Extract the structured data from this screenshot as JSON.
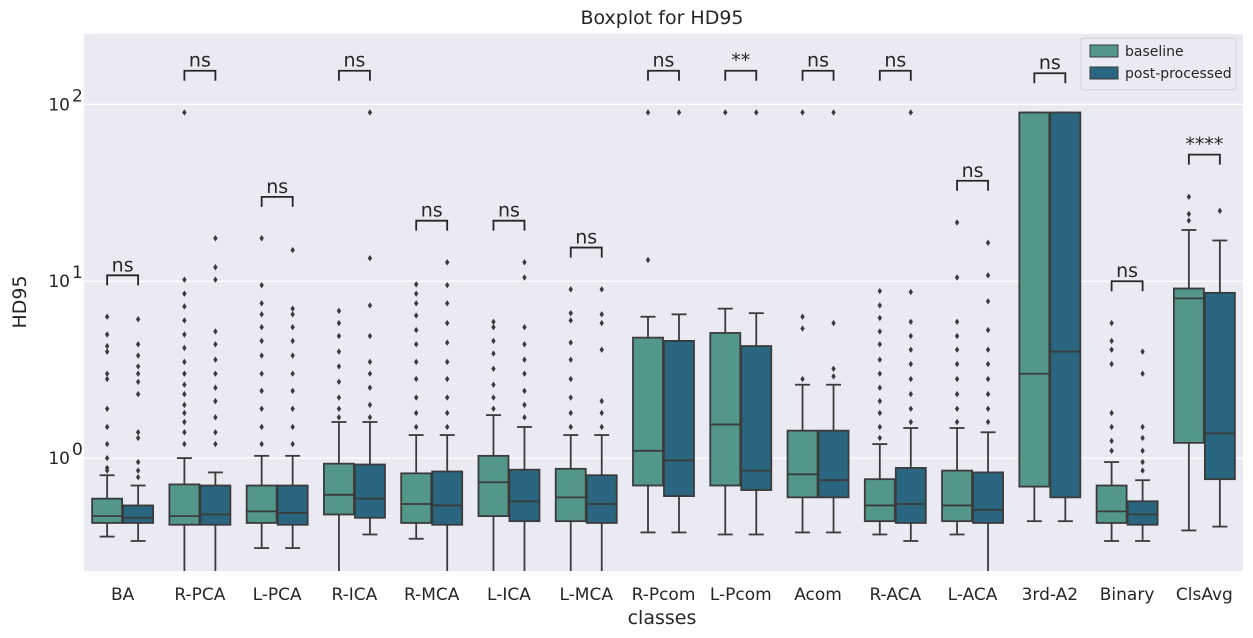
{
  "chart_data": {
    "type": "box",
    "title": "Boxplot for HD95",
    "xlabel": "classes",
    "ylabel": "HD95",
    "yscale": "log",
    "ylim": [
      0.23,
      250
    ],
    "y_ticks": [
      1,
      10,
      100
    ],
    "y_tick_labels": [
      "10",
      "10",
      "10"
    ],
    "y_tick_exponents": [
      "0",
      "1",
      "2"
    ],
    "grid": true,
    "legend_position": "top-right",
    "colors": {
      "baseline": "#52978a",
      "post-processed": "#2a6680",
      "background": "#eaeaf2",
      "line": "#3b3b3b"
    },
    "series_names": [
      "baseline",
      "post-processed"
    ],
    "categories": [
      "BA",
      "R-PCA",
      "L-PCA",
      "R-ICA",
      "R-MCA",
      "L-ICA",
      "L-MCA",
      "R-Pcom",
      "L-Pcom",
      "Acom",
      "R-ACA",
      "L-ACA",
      "3rd-A2",
      "Binary",
      "ClsAvg"
    ],
    "significance": [
      "ns",
      "ns",
      "ns",
      "ns",
      "ns",
      "ns",
      "ns",
      "ns",
      "**",
      "ns",
      "ns",
      "ns",
      "ns",
      "ns",
      "****"
    ],
    "bracket_y": [
      10.8,
      155,
      30,
      155,
      22,
      22,
      15.5,
      155,
      155,
      155,
      155,
      37,
      150,
      10,
      52
    ],
    "series": [
      {
        "name": "baseline",
        "boxes": [
          {
            "whislo": 0.36,
            "q1": 0.43,
            "med": 0.47,
            "q3": 0.59,
            "whishi": 0.8,
            "fliers": [
              0.85,
              0.88,
              1.0,
              1.2,
              1.5,
              1.9,
              2.8,
              3.0,
              4.0,
              4.3,
              5.0,
              6.3
            ]
          },
          {
            "whislo": 0.22,
            "q1": 0.42,
            "med": 0.47,
            "q3": 0.71,
            "whishi": 1.0,
            "fliers": [
              1.2,
              1.4,
              1.6,
              1.8,
              2.0,
              2.3,
              2.6,
              3.0,
              3.5,
              4.2,
              5.0,
              6.0,
              7.2,
              8.5,
              10.2,
              90
            ]
          },
          {
            "whislo": 0.31,
            "q1": 0.43,
            "med": 0.5,
            "q3": 0.7,
            "whishi": 1.03,
            "fliers": [
              1.2,
              1.5,
              1.9,
              2.4,
              3.0,
              3.8,
              4.6,
              5.5,
              6.5,
              7.5,
              9.5,
              17.5
            ]
          },
          {
            "whislo": 0.22,
            "q1": 0.48,
            "med": 0.62,
            "q3": 0.93,
            "whishi": 1.6,
            "fliers": [
              1.7,
              1.9,
              2.2,
              2.7,
              3.3,
              4.0,
              4.9,
              5.8,
              6.8
            ]
          },
          {
            "whislo": 0.35,
            "q1": 0.43,
            "med": 0.55,
            "q3": 0.82,
            "whishi": 1.35,
            "fliers": [
              1.5,
              1.8,
              2.2,
              2.8,
              3.5,
              4.4,
              5.3,
              6.4,
              7.5,
              8.5,
              9.6
            ]
          },
          {
            "whislo": 0.22,
            "q1": 0.47,
            "med": 0.73,
            "q3": 1.03,
            "whishi": 1.75,
            "fliers": [
              1.9,
              2.2,
              2.6,
              3.2,
              3.9,
              4.6,
              5.5,
              5.9
            ]
          },
          {
            "whislo": 0.22,
            "q1": 0.44,
            "med": 0.6,
            "q3": 0.87,
            "whishi": 1.35,
            "fliers": [
              1.5,
              1.8,
              2.2,
              2.8,
              3.6,
              4.5,
              6.0,
              6.6,
              9.0
            ]
          },
          {
            "whislo": 0.38,
            "q1": 0.7,
            "med": 1.1,
            "q3": 4.8,
            "whishi": 6.3,
            "fliers": [
              13.2,
              90
            ]
          },
          {
            "whislo": 0.37,
            "q1": 0.7,
            "med": 1.55,
            "q3": 5.1,
            "whishi": 7.0,
            "fliers": [
              90
            ]
          },
          {
            "whislo": 0.38,
            "q1": 0.6,
            "med": 0.81,
            "q3": 1.43,
            "whishi": 2.6,
            "fliers": [
              2.8,
              5.4,
              6.3,
              90
            ]
          },
          {
            "whislo": 0.37,
            "q1": 0.44,
            "med": 0.54,
            "q3": 0.76,
            "whishi": 1.2,
            "fliers": [
              1.3,
              1.5,
              1.8,
              2.1,
              2.5,
              3.0,
              3.6,
              4.4,
              5.2,
              6.2,
              7.3,
              8.8
            ]
          },
          {
            "whislo": 0.37,
            "q1": 0.44,
            "med": 0.54,
            "q3": 0.85,
            "whishi": 1.48,
            "fliers": [
              1.6,
              1.9,
              2.3,
              2.8,
              3.4,
              4.1,
              4.9,
              5.9,
              10.5,
              21.5
            ]
          },
          {
            "whislo": 0.44,
            "q1": 0.69,
            "med": 3.0,
            "q3": 90,
            "whishi": 90,
            "fliers": []
          },
          {
            "whislo": 0.34,
            "q1": 0.43,
            "med": 0.5,
            "q3": 0.7,
            "whishi": 0.95,
            "fliers": [
              1.1,
              1.25,
              1.5,
              1.8,
              3.4,
              4.1,
              4.6,
              5.8
            ]
          },
          {
            "whislo": 0.39,
            "q1": 1.22,
            "med": 8.0,
            "q3": 9.1,
            "whishi": 19.5,
            "fliers": [
              22,
              24,
              30
            ]
          }
        ]
      },
      {
        "name": "post-processed",
        "boxes": [
          {
            "whislo": 0.34,
            "q1": 0.43,
            "med": 0.46,
            "q3": 0.54,
            "whishi": 0.7,
            "fliers": [
              0.78,
              0.85,
              0.95,
              1.3,
              1.4,
              2.3,
              2.7,
              3.0,
              3.3,
              3.8,
              4.4,
              6.1
            ]
          },
          {
            "whislo": 0.22,
            "q1": 0.42,
            "med": 0.48,
            "q3": 0.7,
            "whishi": 0.83,
            "fliers": [
              1.2,
              1.4,
              1.7,
              2.1,
              2.5,
              3.0,
              3.6,
              4.4,
              5.2,
              10.2,
              12,
              17.5
            ]
          },
          {
            "whislo": 0.31,
            "q1": 0.42,
            "med": 0.49,
            "q3": 0.7,
            "whishi": 1.03,
            "fliers": [
              1.2,
              1.5,
              1.9,
              2.4,
              3.0,
              3.8,
              4.6,
              5.5,
              6.5,
              7.0,
              15
            ]
          },
          {
            "whislo": 0.37,
            "q1": 0.46,
            "med": 0.59,
            "q3": 0.92,
            "whishi": 1.6,
            "fliers": [
              1.7,
              2.0,
              2.5,
              3.0,
              3.5,
              4.9,
              7.3,
              13.5,
              90
            ]
          },
          {
            "whislo": 0.22,
            "q1": 0.42,
            "med": 0.54,
            "q3": 0.84,
            "whishi": 1.35,
            "fliers": [
              1.5,
              1.8,
              2.2,
              2.8,
              3.5,
              4.5,
              5.8,
              7.5,
              9.5,
              12.8
            ]
          },
          {
            "whislo": 0.22,
            "q1": 0.44,
            "med": 0.57,
            "q3": 0.86,
            "whishi": 1.5,
            "fliers": [
              1.7,
              2.0,
              2.4,
              3.0,
              3.6,
              4.4,
              5.5,
              10.5,
              12.8
            ]
          },
          {
            "whislo": 0.22,
            "q1": 0.43,
            "med": 0.55,
            "q3": 0.8,
            "whishi": 1.35,
            "fliers": [
              1.5,
              1.8,
              2.1,
              4.1,
              5.8,
              6.5,
              9.0
            ]
          },
          {
            "whislo": 0.38,
            "q1": 0.61,
            "med": 0.97,
            "q3": 4.6,
            "whishi": 6.5,
            "fliers": [
              90
            ]
          },
          {
            "whislo": 0.37,
            "q1": 0.66,
            "med": 0.85,
            "q3": 4.3,
            "whishi": 6.6,
            "fliers": [
              90
            ]
          },
          {
            "whislo": 0.38,
            "q1": 0.6,
            "med": 0.75,
            "q3": 1.43,
            "whishi": 2.6,
            "fliers": [
              2.9,
              3.2,
              5.8,
              90
            ]
          },
          {
            "whislo": 0.34,
            "q1": 0.43,
            "med": 0.55,
            "q3": 0.88,
            "whishi": 1.48,
            "fliers": [
              1.6,
              1.9,
              2.3,
              2.8,
              3.4,
              4.1,
              4.9,
              5.9,
              8.7,
              90
            ]
          },
          {
            "whislo": 0.22,
            "q1": 0.43,
            "med": 0.51,
            "q3": 0.83,
            "whishi": 1.4,
            "fliers": [
              1.6,
              1.9,
              2.3,
              2.8,
              3.4,
              4.1,
              5.3,
              7.7,
              10.8,
              16.5
            ]
          },
          {
            "whislo": 0.44,
            "q1": 0.6,
            "med": 4.0,
            "q3": 90,
            "whishi": 90,
            "fliers": []
          },
          {
            "whislo": 0.34,
            "q1": 0.42,
            "med": 0.48,
            "q3": 0.57,
            "whishi": 0.75,
            "fliers": [
              0.85,
              0.95,
              1.1,
              1.3,
              1.5,
              3.0,
              4.0
            ]
          },
          {
            "whislo": 0.41,
            "q1": 0.76,
            "med": 1.38,
            "q3": 8.6,
            "whishi": 17.0,
            "fliers": [
              25
            ]
          }
        ]
      }
    ]
  }
}
